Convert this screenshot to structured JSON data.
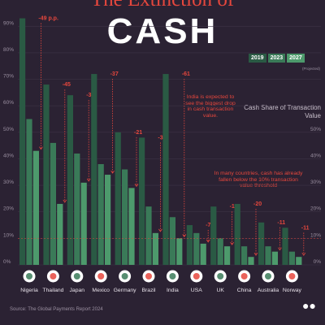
{
  "header": {
    "title_top": "The Extinction of",
    "title_main": "CASH",
    "legend": [
      "2019",
      "2023",
      "2027"
    ],
    "legend_note": "Projected",
    "y_title": "Cash Share of Transaction Value",
    "annotation_india": "India is expected to see the biggest drop in cash transaction value.",
    "annotation_threshold": "In many countries, cash has already fallen below the 10% transaction value threshold",
    "source": "Source: The Global Payments Report 2024"
  },
  "colors": {
    "background": "#2b2233",
    "bar_2019": "#2a5a44",
    "bar_2023": "#3a7a58",
    "bar_2027": "#4d9a6c",
    "accent_red": "#e6473d",
    "threshold": "#e6473d"
  },
  "chart_data": {
    "type": "bar",
    "categories": [
      "Nigeria",
      "Thailand",
      "Japan",
      "Mexico",
      "Germany",
      "Brazil",
      "India",
      "USA",
      "UK",
      "China",
      "Australia",
      "Norway"
    ],
    "series": [
      {
        "name": "2019",
        "values": [
          93,
          68,
          64,
          72,
          50,
          48,
          72,
          15,
          22,
          23,
          16,
          14
        ]
      },
      {
        "name": "2023",
        "values": [
          55,
          46,
          42,
          38,
          36,
          22,
          18,
          12,
          10,
          7,
          7,
          5
        ]
      },
      {
        "name": "2027",
        "values": [
          43,
          23,
          31,
          34,
          29,
          12,
          10,
          8,
          7,
          3,
          5,
          3
        ]
      }
    ],
    "change_labels": [
      "-49 p.p.",
      "-45",
      "-33",
      "-37",
      "-21",
      "-36",
      "-61",
      "-7",
      "-15",
      "-20",
      "-11",
      "-11"
    ],
    "yticks": [
      "0%",
      "10%",
      "20%",
      "30%",
      "40%",
      "50%",
      "60%",
      "70%",
      "80%",
      "90%"
    ],
    "yticks_right": [
      "0%",
      "10%",
      "20%",
      "30%",
      "40%",
      "50%"
    ],
    "ylim": [
      0,
      95
    ],
    "threshold": 10,
    "flags": {
      "Nigeria": "nigeria-flag-icon",
      "Thailand": "thailand-flag-icon",
      "Japan": "japan-flag-icon",
      "Mexico": "mexico-flag-icon",
      "Germany": "germany-flag-icon",
      "Brazil": "brazil-flag-icon",
      "India": "india-flag-icon",
      "USA": "usa-flag-icon",
      "UK": "uk-flag-icon",
      "China": "china-flag-icon",
      "Australia": "australia-flag-icon",
      "Norway": "norway-flag-icon"
    }
  }
}
